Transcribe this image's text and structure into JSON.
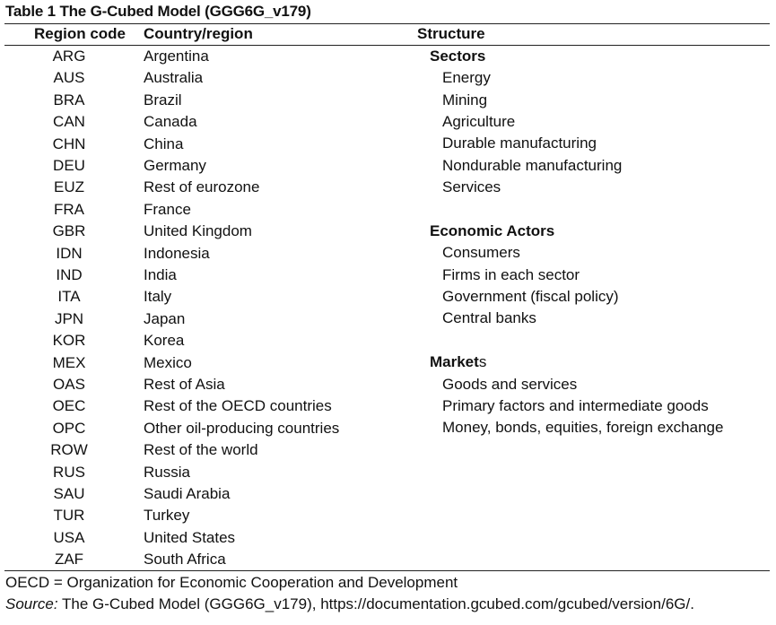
{
  "table": {
    "title": "Table 1 The G-Cubed Model (GGG6G_v179)",
    "headers": {
      "code": "Region code",
      "country": "Country/region",
      "structure": "Structure"
    },
    "regions": [
      {
        "code": "ARG",
        "name": "Argentina"
      },
      {
        "code": "AUS",
        "name": "Australia"
      },
      {
        "code": "BRA",
        "name": "Brazil"
      },
      {
        "code": "CAN",
        "name": "Canada"
      },
      {
        "code": "CHN",
        "name": "China"
      },
      {
        "code": "DEU",
        "name": "Germany"
      },
      {
        "code": "EUZ",
        "name": "Rest of eurozone"
      },
      {
        "code": "FRA",
        "name": "France"
      },
      {
        "code": "GBR",
        "name": "United Kingdom"
      },
      {
        "code": "IDN",
        "name": "Indonesia"
      },
      {
        "code": "IND",
        "name": "India"
      },
      {
        "code": "ITA",
        "name": "Italy"
      },
      {
        "code": "JPN",
        "name": "Japan"
      },
      {
        "code": "KOR",
        "name": "Korea"
      },
      {
        "code": "MEX",
        "name": "Mexico"
      },
      {
        "code": "OAS",
        "name": "Rest of Asia"
      },
      {
        "code": "OEC",
        "name": "Rest of the OECD countries"
      },
      {
        "code": "OPC",
        "name": "Other oil-producing countries"
      },
      {
        "code": "ROW",
        "name": "Rest of the world"
      },
      {
        "code": "RUS",
        "name": "Russia"
      },
      {
        "code": "SAU",
        "name": "Saudi Arabia"
      },
      {
        "code": "TUR",
        "name": "Turkey"
      },
      {
        "code": "USA",
        "name": "United States"
      },
      {
        "code": "ZAF",
        "name": "South Africa"
      }
    ],
    "structure": {
      "sectors": {
        "heading": "Sectors",
        "items": [
          "Energy",
          "Mining",
          "Agriculture",
          "Durable manufacturing",
          "Nondurable manufacturing",
          "Services"
        ]
      },
      "actors": {
        "heading": "Economic Actors",
        "items": [
          "Consumers",
          "Firms in each sector",
          "Government (fiscal policy)",
          "Central banks"
        ]
      },
      "markets": {
        "heading_bold": "Market",
        "heading_tail": "s",
        "items": [
          "Goods and services",
          "Primary factors and intermediate goods",
          "Money, bonds, equities, foreign exchange"
        ]
      }
    },
    "footnote": "OECD = Organization for Economic Cooperation and Development",
    "source_label": "Source:",
    "source_text": " The G-Cubed Model (GGG6G_v179), https://documentation.gcubed.com/gcubed/version/6G/."
  }
}
